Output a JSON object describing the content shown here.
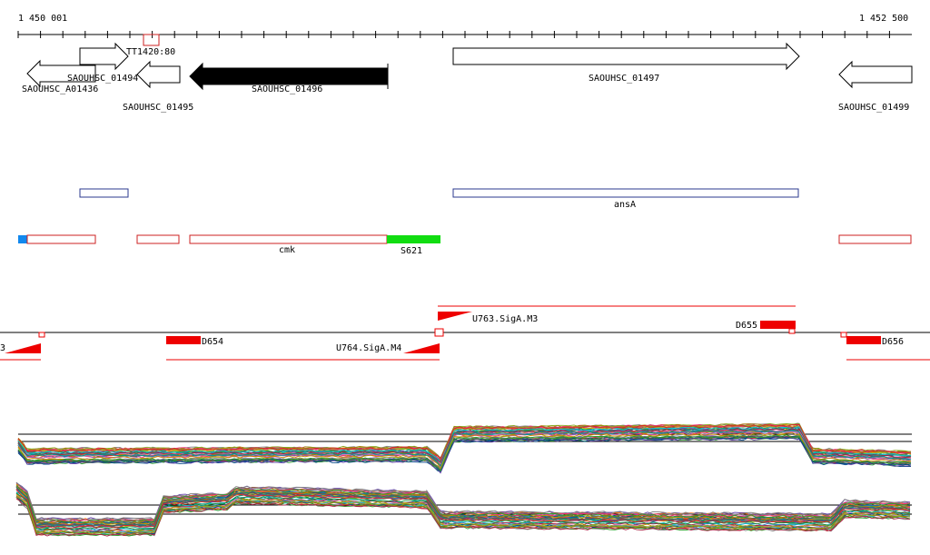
{
  "ruler": {
    "start_label": "1 450 001",
    "end_label": "1 452 500"
  },
  "genes": [
    {
      "id": "SAOUHSC_A01436",
      "label": "SAOUHSC_A01436",
      "strand": "-",
      "filled": false
    },
    {
      "id": "SAOUHSC_01494",
      "label": "SAOUHSC_01494",
      "strand": "+",
      "filled": false
    },
    {
      "id": "SAOUHSC_01495",
      "label": "SAOUHSC_01495",
      "strand": "-",
      "filled": false
    },
    {
      "id": "SAOUHSC_01496",
      "label": "SAOUHSC_01496",
      "strand": "-",
      "filled": true
    },
    {
      "id": "SAOUHSC_01497",
      "label": "SAOUHSC_01497",
      "strand": "+",
      "filled": false
    },
    {
      "id": "SAOUHSC_01499",
      "label": "SAOUHSC_01499",
      "strand": "-",
      "filled": false
    },
    {
      "id": "TT1420",
      "label": "TT1420:80",
      "strand": "",
      "filled": false
    }
  ],
  "operons_plus": [
    {
      "label": ""
    },
    {
      "label": "ansA"
    }
  ],
  "operons_minus": [
    {
      "label": ""
    },
    {
      "label": ""
    },
    {
      "label": "cmk"
    },
    {
      "label": "S621"
    },
    {
      "label": ""
    }
  ],
  "features": {
    "u763": "U763.SigA.M3",
    "u764": "U764.SigA.M4",
    "d654": "D654",
    "d655": "D655",
    "d656": "D656",
    "left_cut": "3"
  },
  "colors": {
    "gene_outline": "#000000",
    "operon_plus": "#2b3a8f",
    "operon_minus": "#cc2222",
    "feature_red": "#ee0000",
    "highlight_green": "#11dd11",
    "highlight_blue": "#1188ee"
  }
}
